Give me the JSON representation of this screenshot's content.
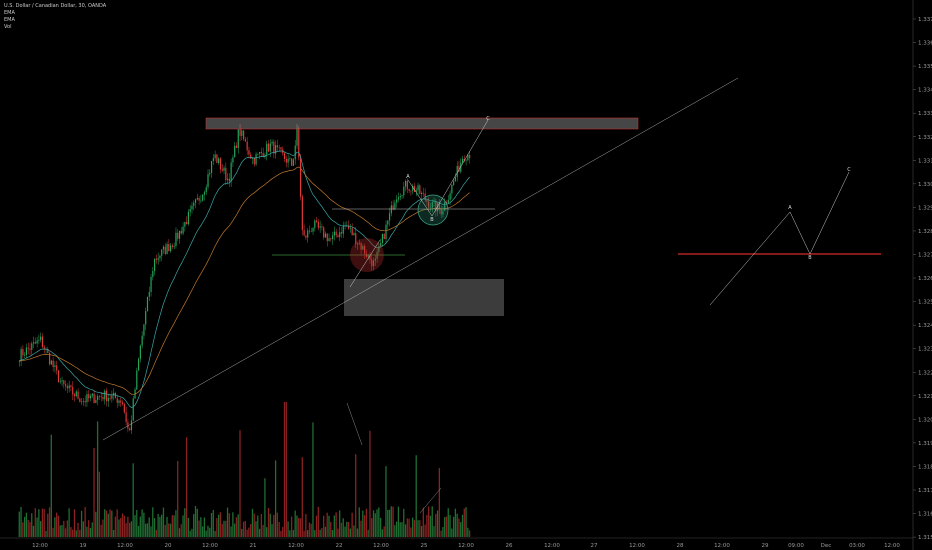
{
  "chart_data": {
    "type": "candlestick",
    "title": "U.S. Dollar / Canadian Dollar, 30, OANDA",
    "indicators": [
      "EMA",
      "EMA",
      "Vol"
    ],
    "y_ticks": [
      "1.33700",
      "1.33600",
      "1.33500",
      "1.33400",
      "1.33300",
      "1.33200",
      "1.33100",
      "1.33000",
      "1.32900",
      "1.32800",
      "1.32700",
      "1.32600",
      "1.32500",
      "1.32400",
      "1.32300",
      "1.32200",
      "1.32100",
      "1.32000",
      "1.31900",
      "1.31800",
      "1.31700",
      "1.31600",
      "1.31500"
    ],
    "ylim": [
      1.315,
      1.337
    ],
    "x_ticks": [
      "12:00",
      "19",
      "12:00",
      "20",
      "12:00",
      "21",
      "12:00",
      "22",
      "12:00",
      "25",
      "12:00",
      "26",
      "12:00",
      "27",
      "12:00",
      "28",
      "12:00",
      "29",
      "09:00",
      "Dec",
      "03:00",
      "12:00"
    ],
    "price_path": [
      [
        "18 06:00",
        1.32272
      ],
      [
        "18 12:00",
        1.32336
      ],
      [
        "18 18:00",
        1.32145
      ],
      [
        "19 00:00",
        1.32081
      ],
      [
        "19 06:00",
        1.32102
      ],
      [
        "19 11:00",
        1.32081
      ],
      [
        "19 13:00",
        1.31932
      ],
      [
        "19 16:00",
        1.32293
      ],
      [
        "19 20:00",
        1.32676
      ],
      [
        "20 02:00",
        1.32761
      ],
      [
        "20 06:00",
        1.32867
      ],
      [
        "20 10:00",
        1.32973
      ],
      [
        "20 13:00",
        1.33122
      ],
      [
        "20 17:00",
        1.33016
      ],
      [
        "20 20:00",
        1.33228
      ],
      [
        "21 00:00",
        1.33101
      ],
      [
        "21 05:00",
        1.33164
      ],
      [
        "21 11:00",
        1.3308
      ],
      [
        "21 12:30",
        1.33228
      ],
      [
        "21 14:00",
        1.32761
      ],
      [
        "21 17:00",
        1.32825
      ],
      [
        "21 22:00",
        1.32761
      ],
      [
        "22 02:00",
        1.32825
      ],
      [
        "22 06:00",
        1.3274
      ],
      [
        "22 10:00",
        1.32655
      ],
      [
        "22 13:00",
        1.32803
      ],
      [
        "22 16:00",
        1.32952
      ],
      [
        "22 19:00",
        1.32994
      ],
      [
        "22 22:00",
        1.32973
      ],
      [
        "25 02:00",
        1.3291
      ],
      [
        "25 05:00",
        1.32888
      ],
      [
        "25 08:00",
        1.32994
      ],
      [
        "25 11:00",
        1.33122
      ],
      [
        "25 13:00",
        1.3313
      ]
    ],
    "drawings": {
      "wave_labels_left": [
        "A",
        "B",
        "C"
      ],
      "wave_labels_right": [
        "A",
        "B",
        "C"
      ]
    },
    "colors": {
      "up": "#26a65b",
      "down": "#e03a3a",
      "ema_fast": "#3aa6a6",
      "ema_slow": "#c0782a",
      "resistance_border": "#c03030",
      "level_line": "#b02424"
    },
    "grid": false
  }
}
